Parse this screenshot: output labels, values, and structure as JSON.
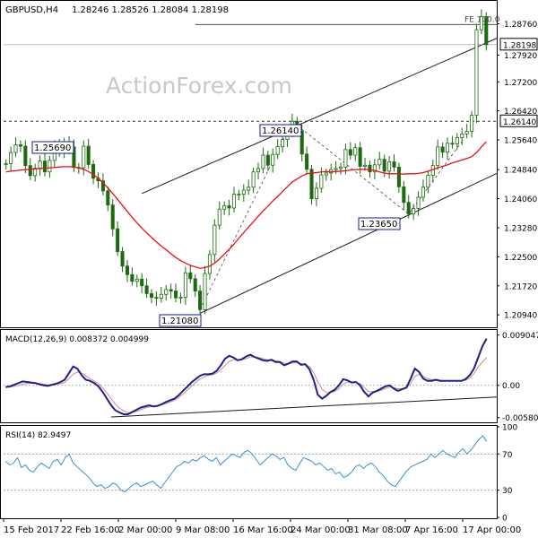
{
  "header": {
    "symbol": "GBPUSD,H4",
    "ohlc": "1.28246 1.28526 1.28084 1.28198"
  },
  "watermark": "ActionForex.com",
  "colors": {
    "candle": "#1d6b10",
    "ma": "#e8101a",
    "trend": "#1a1a1a",
    "macd": "#1f1f8c",
    "signal": "#d08a8a",
    "rsi": "#3a8fd8",
    "box_border": "#1a1a8c"
  },
  "chart_data": [
    {
      "type": "candlestick",
      "title": "GBPUSD,H4",
      "ylim": [
        1.2063,
        1.2935
      ],
      "yticks": [
        "1.28760",
        "1.27920",
        "1.27200",
        "1.26420",
        "1.25640",
        "1.24840",
        "1.24060",
        "1.23280",
        "1.22500",
        "1.21720",
        "1.20940"
      ],
      "price_labels": {
        "last": "1.28198",
        "level": "1.26140"
      },
      "annotations": [
        "FE 100.0",
        "1.25690",
        "1.26140",
        "1.23650",
        "1.21080"
      ],
      "series": [
        {
          "name": "GBPUSD",
          "values": [
            1.25,
            1.253,
            1.2551,
            1.2547,
            1.2495,
            1.2468,
            1.2488,
            1.2507,
            1.2478,
            1.2509,
            1.2547,
            1.2531,
            1.2558,
            1.2545,
            1.249,
            1.2489,
            1.2547,
            1.2498,
            1.2461,
            1.2454,
            1.2427,
            1.2389,
            1.2325,
            1.2264,
            1.2225,
            1.2202,
            1.2184,
            1.219,
            1.2172,
            1.2151,
            1.2141,
            1.2139,
            1.2149,
            1.2162,
            1.2158,
            1.214,
            1.2141,
            1.2207,
            1.2191,
            1.2158,
            1.2108,
            1.2205,
            1.2256,
            1.2335,
            1.2378,
            1.2387,
            1.2381,
            1.2418,
            1.2418,
            1.2429,
            1.2437,
            1.2478,
            1.2487,
            1.2523,
            1.2496,
            1.2525,
            1.2546,
            1.2565,
            1.2583,
            1.2614,
            1.2589,
            1.2526,
            1.2485,
            1.2406,
            1.2434,
            1.247,
            1.2475,
            1.2484,
            1.2487,
            1.2491,
            1.2538,
            1.2523,
            1.2543,
            1.2493,
            1.2496,
            1.2478,
            1.2497,
            1.2512,
            1.248,
            1.2505,
            1.2491,
            1.2438,
            1.2396,
            1.2365,
            1.238,
            1.241,
            1.2437,
            1.2469,
            1.2495,
            1.2545,
            1.2531,
            1.2555,
            1.2553,
            1.257,
            1.258,
            1.2587,
            1.263,
            1.286,
            1.2895,
            1.282
          ]
        }
      ],
      "indicator": {
        "name": "MA",
        "values": [
          1.2478,
          1.248,
          1.2481,
          1.2483,
          1.2484,
          1.2485,
          1.2486,
          1.2487,
          1.2488,
          1.2489,
          1.249,
          1.2491,
          1.2492,
          1.2492,
          1.2491,
          1.2489,
          1.2485,
          1.2479,
          1.2471,
          1.2461,
          1.2449,
          1.2435,
          1.242,
          1.2404,
          1.2388,
          1.2372,
          1.2356,
          1.2341,
          1.2327,
          1.2314,
          1.2302,
          1.229,
          1.2279,
          1.2269,
          1.2258,
          1.2248,
          1.224,
          1.2233,
          1.2227,
          1.2223,
          1.2219,
          1.2221,
          1.2225,
          1.2233,
          1.2244,
          1.2257,
          1.227,
          1.2284,
          1.23,
          1.2315,
          1.233,
          1.2344,
          1.2359,
          1.2373,
          1.2386,
          1.24,
          1.2412,
          1.2425,
          1.2438,
          1.2451,
          1.2459,
          1.2467,
          1.2473,
          1.2475,
          1.2476,
          1.2478,
          1.2479,
          1.2478,
          1.2479,
          1.248,
          1.2481,
          1.2483,
          1.2484,
          1.2485,
          1.2485,
          1.2484,
          1.2482,
          1.2478,
          1.2475,
          1.2473,
          1.2473,
          1.2473,
          1.2472,
          1.2473,
          1.2473,
          1.2474,
          1.2476,
          1.248,
          1.2484,
          1.2489,
          1.2493,
          1.2497,
          1.2502,
          1.2506,
          1.251,
          1.2514,
          1.2519,
          1.253,
          1.2545,
          1.2559
        ]
      }
    },
    {
      "type": "line",
      "title": "MACD(12,26,9) 0.008372 0.004999",
      "ylim": [
        -0.0065,
        0.0098
      ],
      "yticks": [
        "0.009047",
        "0.00",
        "-0.005804"
      ],
      "series": [
        {
          "name": "MACD",
          "values": [
            -0.0003,
            -0.0002,
            0.0001,
            0.0004,
            0.0007,
            0.0006,
            0.0005,
            0.0004,
            0.0002,
            0.0,
            -0.0001,
            0.0001,
            0.0003,
            0.0006,
            0.001,
            0.0022,
            0.0034,
            0.003,
            0.0018,
            0.001,
            0.0008,
            0.0004,
            -0.0002,
            -0.0012,
            -0.0024,
            -0.0036,
            -0.0045,
            -0.0049,
            -0.0052,
            -0.0052,
            -0.0048,
            -0.0044,
            -0.004,
            -0.0038,
            -0.0036,
            -0.0038,
            -0.0037,
            -0.0034,
            -0.003,
            -0.0027,
            -0.0024,
            -0.0018,
            -0.001,
            -0.0003,
            0.0005,
            0.0011,
            0.0017,
            0.002,
            0.002,
            0.0021,
            0.0026,
            0.0036,
            0.0048,
            0.0053,
            0.005,
            0.0045,
            0.0047,
            0.0052,
            0.0055,
            0.0051,
            0.0048,
            0.0045,
            0.0044,
            0.0046,
            0.0042,
            0.0042,
            0.0036,
            0.0039,
            0.0043,
            0.0043,
            0.0037,
            0.0038,
            0.0029,
            0.001,
            -0.0017,
            -0.0024,
            -0.0019,
            -0.0012,
            -0.0008,
            0.0,
            0.0011,
            0.0009,
            0.0005,
            0.0006,
            0.0,
            -0.0012,
            -0.002,
            -0.0013,
            -0.001,
            -0.0006,
            -0.0002,
            0.0,
            -0.0006,
            -0.001,
            -0.0007,
            -0.0004,
            0.0012,
            0.003,
            0.0024,
            0.0012,
            0.0008,
            0.0008,
            0.001,
            0.0008,
            0.0008,
            0.0008,
            0.0008,
            0.0008,
            0.0008,
            0.0011,
            0.0018,
            0.003,
            0.005,
            0.007,
            0.0084
          ]
        },
        {
          "name": "Signal",
          "values": [
            -0.0004,
            -0.0003,
            -0.0002,
            0.0,
            0.0002,
            0.0003,
            0.0004,
            0.0004,
            0.0003,
            0.0002,
            0.0001,
            0.0001,
            0.0002,
            0.0003,
            0.0005,
            0.0012,
            0.002,
            0.0024,
            0.0022,
            0.0017,
            0.0012,
            0.0008,
            0.0003,
            -0.0005,
            -0.0014,
            -0.0024,
            -0.0034,
            -0.0041,
            -0.0046,
            -0.0049,
            -0.0049,
            -0.0047,
            -0.0044,
            -0.0041,
            -0.0039,
            -0.0038,
            -0.0037,
            -0.0035,
            -0.0033,
            -0.003,
            -0.0027,
            -0.0022,
            -0.0016,
            -0.0009,
            -0.0002,
            0.0005,
            0.0011,
            0.0015,
            0.0018,
            0.0019,
            0.0022,
            0.0028,
            0.0036,
            0.0043,
            0.0046,
            0.0046,
            0.0046,
            0.0048,
            0.0051,
            0.0051,
            0.005,
            0.0048,
            0.0046,
            0.0046,
            0.0044,
            0.0043,
            0.004,
            0.0039,
            0.004,
            0.0041,
            0.0039,
            0.0038,
            0.0034,
            0.0023,
            0.0006,
            -0.0007,
            -0.0013,
            -0.0013,
            -0.0011,
            -0.0006,
            0.0002,
            0.0006,
            0.0005,
            0.0005,
            0.0003,
            -0.0004,
            -0.0011,
            -0.0012,
            -0.0011,
            -0.0009,
            -0.0006,
            -0.0003,
            -0.0004,
            -0.0006,
            -0.0006,
            -0.0005,
            0.0003,
            0.0016,
            0.002,
            0.0016,
            0.0012,
            0.001,
            0.001,
            0.0009,
            0.0008,
            0.0008,
            0.0008,
            0.0008,
            0.0008,
            0.0009,
            0.0013,
            0.0021,
            0.0033,
            0.0042,
            0.005
          ]
        }
      ],
      "trendline_ends": [
        -0.0057,
        -0.0021
      ]
    },
    {
      "type": "line",
      "title": "RSI(14) 82.9497",
      "ylim": [
        0,
        100
      ],
      "yticks": [
        "100",
        "70",
        "30",
        "0"
      ],
      "levels": [
        70,
        30
      ],
      "series": [
        {
          "name": "RSI",
          "values": [
            62,
            58,
            60,
            66,
            55,
            58,
            52,
            50,
            56,
            60,
            57,
            54,
            62,
            64,
            58,
            66,
            70,
            60,
            56,
            52,
            48,
            44,
            38,
            34,
            36,
            32,
            34,
            38,
            36,
            30,
            28,
            32,
            36,
            38,
            34,
            36,
            38,
            40,
            36,
            32,
            38,
            44,
            50,
            56,
            58,
            62,
            60,
            64,
            62,
            66,
            68,
            64,
            62,
            66,
            58,
            62,
            66,
            70,
            68,
            66,
            72,
            74,
            70,
            64,
            58,
            62,
            66,
            70,
            68,
            64,
            66,
            58,
            54,
            52,
            60,
            66,
            64,
            62,
            58,
            60,
            56,
            52,
            54,
            48,
            50,
            44,
            46,
            50,
            56,
            58,
            54,
            58,
            60,
            56,
            50,
            46,
            40,
            36,
            34,
            40,
            46,
            52,
            56,
            58,
            60,
            62,
            64,
            70,
            66,
            70,
            74,
            70,
            68,
            66,
            72,
            76,
            70,
            74,
            80,
            86,
            90,
            84
          ]
        }
      ]
    }
  ],
  "xaxis": {
    "labels": [
      "15 Feb 2017",
      "22 Feb 16:00",
      "2 Mar 00:00",
      "9 Mar 08:00",
      "16 Mar 16:00",
      "24 Mar 00:00",
      "31 Mar 08:00",
      "7 Apr 16:00",
      "17 Apr 00:00"
    ]
  }
}
